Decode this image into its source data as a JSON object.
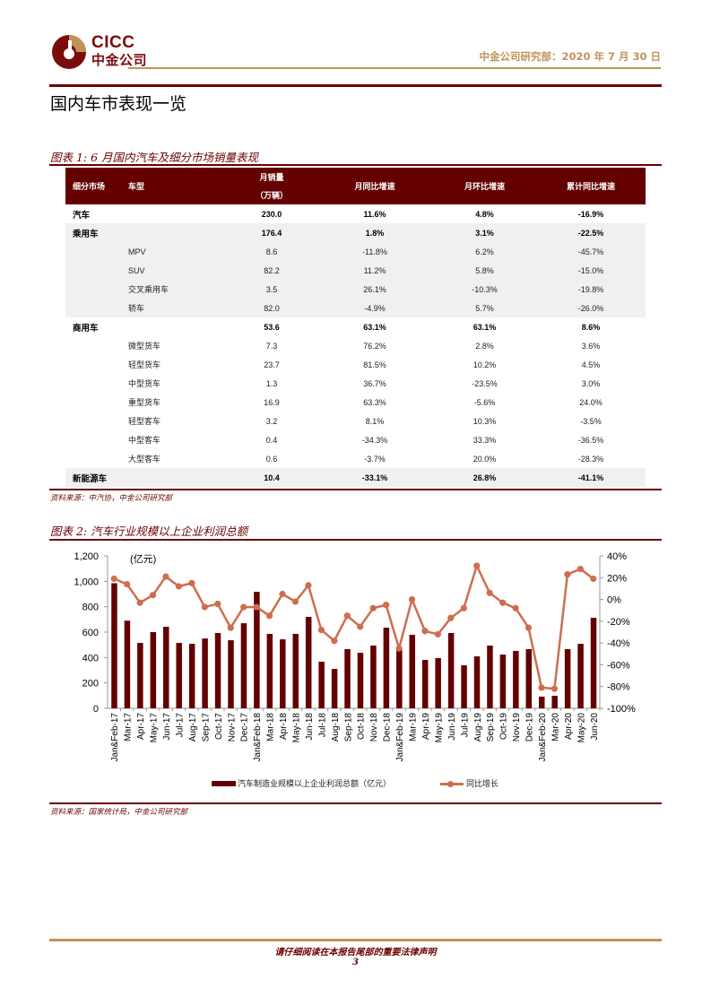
{
  "header": {
    "logo_en": "CICC",
    "logo_cn": "中金公司",
    "meta": "中金公司研究部：2020 年 7 月 30 日",
    "section_title": "国内车市表现一览",
    "colors": {
      "brand_dark": "#640000",
      "brand_gold": "#c0935a",
      "line": "#cd6e4f"
    }
  },
  "table1": {
    "title": "图表 1: 6 月国内汽车及细分市场销量表现",
    "headers": [
      "细分市场",
      "车型",
      "月销量",
      "（万辆）",
      "月同比增速",
      "月环比增速",
      "累计同比增速"
    ],
    "rows": [
      {
        "segment": "汽车",
        "model": "",
        "sales": "230.0",
        "yoy": "11.6%",
        "mom": "4.8%",
        "ytd": "-16.9%",
        "bold": true,
        "gray": false
      },
      {
        "segment": "乘用车",
        "model": "",
        "sales": "176.4",
        "yoy": "1.8%",
        "mom": "3.1%",
        "ytd": "-22.5%",
        "bold": true,
        "gray": true
      },
      {
        "segment": "",
        "model": "MPV",
        "sales": "8.6",
        "yoy": "-11.8%",
        "mom": "6.2%",
        "ytd": "-45.7%",
        "bold": false,
        "gray": true
      },
      {
        "segment": "",
        "model": "SUV",
        "sales": "82.2",
        "yoy": "11.2%",
        "mom": "5.8%",
        "ytd": "-15.0%",
        "bold": false,
        "gray": true
      },
      {
        "segment": "",
        "model": "交叉乘用车",
        "sales": "3.5",
        "yoy": "26.1%",
        "mom": "-10.3%",
        "ytd": "-19.8%",
        "bold": false,
        "gray": true
      },
      {
        "segment": "",
        "model": "轿车",
        "sales": "82.0",
        "yoy": "-4.9%",
        "mom": "5.7%",
        "ytd": "-26.0%",
        "bold": false,
        "gray": true
      },
      {
        "segment": "商用车",
        "model": "",
        "sales": "53.6",
        "yoy": "63.1%",
        "mom": "63.1%",
        "ytd": "8.6%",
        "bold": true,
        "gray": false
      },
      {
        "segment": "",
        "model": "微型货车",
        "sales": "7.3",
        "yoy": "76.2%",
        "mom": "2.8%",
        "ytd": "3.6%",
        "bold": false,
        "gray": false
      },
      {
        "segment": "",
        "model": "轻型货车",
        "sales": "23.7",
        "yoy": "81.5%",
        "mom": "10.2%",
        "ytd": "4.5%",
        "bold": false,
        "gray": false
      },
      {
        "segment": "",
        "model": "中型货车",
        "sales": "1.3",
        "yoy": "36.7%",
        "mom": "-23.5%",
        "ytd": "3.0%",
        "bold": false,
        "gray": false
      },
      {
        "segment": "",
        "model": "重型货车",
        "sales": "16.9",
        "yoy": "63.3%",
        "mom": "-5.6%",
        "ytd": "24.0%",
        "bold": false,
        "gray": false
      },
      {
        "segment": "",
        "model": "轻型客车",
        "sales": "3.2",
        "yoy": "8.1%",
        "mom": "10.3%",
        "ytd": "-3.5%",
        "bold": false,
        "gray": false
      },
      {
        "segment": "",
        "model": "中型客车",
        "sales": "0.4",
        "yoy": "-34.3%",
        "mom": "33.3%",
        "ytd": "-36.5%",
        "bold": false,
        "gray": false
      },
      {
        "segment": "",
        "model": "大型客车",
        "sales": "0.6",
        "yoy": "-3.7%",
        "mom": "20.0%",
        "ytd": "-28.3%",
        "bold": false,
        "gray": false
      },
      {
        "segment": "新能源车",
        "model": "",
        "sales": "10.4",
        "yoy": "-33.1%",
        "mom": "26.8%",
        "ytd": "-41.1%",
        "bold": true,
        "gray": true
      }
    ],
    "source": "资料来源：中汽协，中金公司研究部"
  },
  "figure2": {
    "title": "图表 2: 汽车行业规模以上企业利润总额",
    "source": "资料来源：国家统计局，中金公司研究部"
  },
  "chart_data": {
    "type": "bar+line",
    "title": "汽车行业规模以上企业利润总额",
    "unit_label": "(亿元)",
    "categories": [
      "Jan&Feb-17",
      "Mar-17",
      "Apr-17",
      "May-17",
      "Jun-17",
      "Jul-17",
      "Aug-17",
      "Sep-17",
      "Oct-17",
      "Nov-17",
      "Dec-17",
      "Jan&Feb-18",
      "Mar-18",
      "Apr-18",
      "May-18",
      "Jun-18",
      "Jul-18",
      "Aug-18",
      "Sep-18",
      "Oct-18",
      "Nov-18",
      "Dec-18",
      "Jan&Feb-19",
      "Mar-19",
      "Apr-19",
      "May-19",
      "Jun-19",
      "Jul-19",
      "Aug-19",
      "Sep-19",
      "Oct-19",
      "Nov-19",
      "Dec-19",
      "Jan&Feb-20",
      "Mar-20",
      "Apr-20",
      "May-20",
      "Jun-20"
    ],
    "series": [
      {
        "name": "汽车制造业规模以上企业利润总额（亿元）",
        "type": "bar",
        "axis": "left",
        "color": "#640000",
        "values": [
          985,
          690,
          515,
          600,
          642,
          515,
          508,
          550,
          593,
          536,
          670,
          917,
          586,
          543,
          586,
          720,
          367,
          310,
          466,
          437,
          494,
          635,
          473,
          579,
          381,
          395,
          593,
          339,
          409,
          494,
          423,
          452,
          466,
          92,
          99,
          466,
          508,
          713
        ]
      },
      {
        "name": "同比增长",
        "type": "line",
        "axis": "right",
        "color": "#cd6e4f",
        "values": [
          19,
          14,
          -3,
          4,
          21,
          12,
          15,
          -7,
          -4,
          -26,
          -7,
          -7,
          -15,
          5,
          -2,
          13,
          -28,
          -38,
          -15,
          -25,
          -8,
          -5,
          -45,
          0,
          -29,
          -32,
          -17,
          -8,
          31,
          6,
          -3,
          -8,
          -26,
          -81,
          -82,
          23,
          28,
          19
        ]
      }
    ],
    "left_axis": {
      "ticks": [
        "0",
        "200",
        "400",
        "600",
        "800",
        "1,000",
        "1,200"
      ],
      "min": 0,
      "max": 1200
    },
    "right_axis": {
      "ticks": [
        "-100%",
        "-80%",
        "-60%",
        "-40%",
        "-20%",
        "0%",
        "20%",
        "40%"
      ],
      "min": -100,
      "max": 40
    },
    "legend_position": "bottom",
    "grid": false
  },
  "footer": {
    "disclaimer": "请仔细阅读在本报告尾部的重要法律声明",
    "page_number": "3"
  }
}
